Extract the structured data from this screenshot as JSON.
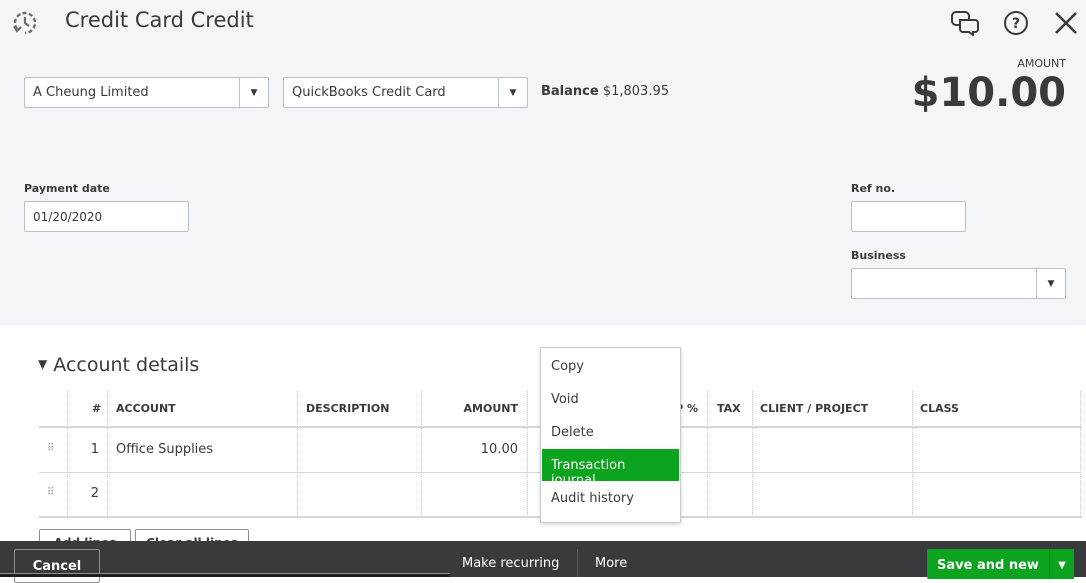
{
  "header": {
    "title": "Credit Card Credit",
    "icons": [
      "recent-transactions-icon",
      "feedback-icon",
      "help-icon",
      "close-icon"
    ]
  },
  "form": {
    "payee": "A Cheung Limited",
    "bank_account": "QuickBooks Credit Card",
    "balance_label": "Balance",
    "balance_value": "$1,803.95",
    "amount_label": "AMOUNT",
    "amount_value": "$10.00",
    "payment_date_label": "Payment date",
    "payment_date": "01/20/2020",
    "ref_no_label": "Ref no.",
    "ref_no": "",
    "business_label": "Business",
    "business": ""
  },
  "account_details": {
    "title": "Account details",
    "columns": [
      "#",
      "ACCOUNT",
      "DESCRIPTION",
      "AMOUNT",
      "P %",
      "TAX",
      "CLIENT / PROJECT",
      "CLASS"
    ],
    "rows": [
      {
        "num": "1",
        "account": "Office Supplies",
        "description": "",
        "amount": "10.00"
      },
      {
        "num": "2",
        "account": "",
        "description": "",
        "amount": ""
      }
    ],
    "add_lines": "Add lines",
    "clear_all_lines": "Clear all lines"
  },
  "more_menu": {
    "items": [
      "Copy",
      "Void",
      "Delete",
      "Transaction journal",
      "Audit history"
    ],
    "active": "Transaction journal"
  },
  "footer": {
    "cancel": "Cancel",
    "make_recurring": "Make recurring",
    "more": "More",
    "save": "Save and new"
  },
  "colors": {
    "accent": "#0ca31f",
    "footer": "#393a3d",
    "background": "#f4f5f8"
  }
}
